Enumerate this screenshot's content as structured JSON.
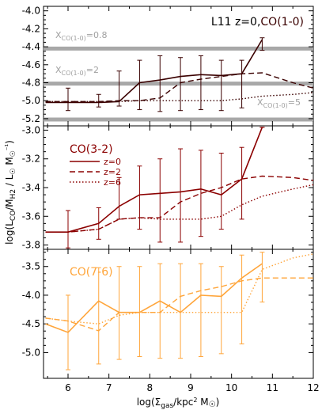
{
  "figure": {
    "x_label": "log(Σgas/kpc² M☉)",
    "y_label": "log(LCO/MH2 / L☉ M☉⁻¹)",
    "colors": {
      "axis": "#000000",
      "co10": "#3a0000",
      "co32": "#8b0000",
      "co76": "#ffa53a",
      "xco_band": "#a8a8a8",
      "xco_label": "#a0a0a0"
    }
  },
  "chart_data": [
    {
      "type": "line",
      "panel": "top",
      "title": "L11 z=0,CO(1-0)",
      "title_parts": [
        "L11 z=0,",
        "CO(1-0)"
      ],
      "xlim": [
        5.4,
        12
      ],
      "ylim": [
        -5.28,
        -3.95
      ],
      "x_ticks": [
        6,
        7,
        8,
        9,
        10,
        11,
        12
      ],
      "y_ticks": [
        -5.2,
        -5.0,
        -4.8,
        -4.6,
        -4.4,
        -4.2,
        -4.0
      ],
      "y_tick_labels": [
        "-5.2",
        "-5.0",
        "-4.8",
        "-4.6",
        "-4.4",
        "-4.2",
        "-4.0"
      ],
      "reference_lines": [
        {
          "label": "XCO(1-0)=0.8",
          "y": -4.42
        },
        {
          "label": "XCO(1-0)=2",
          "y": -4.81
        },
        {
          "label": "XCO(1-0)=5",
          "y": -5.21
        }
      ],
      "series": [
        {
          "style": "solid",
          "x": [
            5.45,
            6.0,
            6.75,
            7.25,
            7.75,
            8.25,
            8.75,
            9.25,
            9.75,
            10.25,
            10.75
          ],
          "y": [
            -5.02,
            -5.02,
            -5.02,
            -5.01,
            -4.8,
            -4.77,
            -4.73,
            -4.71,
            -4.72,
            -4.7,
            -4.32
          ]
        },
        {
          "style": "dashed",
          "x": [
            5.45,
            6.0,
            6.75,
            7.25,
            7.75,
            8.25,
            8.75,
            9.25,
            9.75,
            10.25,
            10.75,
            11.5,
            12.0
          ],
          "y": [
            -5.01,
            -5.01,
            -5.01,
            -5.0,
            -5.0,
            -4.97,
            -4.8,
            -4.76,
            -4.73,
            -4.7,
            -4.69,
            -4.8,
            -4.86
          ]
        },
        {
          "style": "dotted",
          "x": [
            5.45,
            6.0,
            6.75,
            7.25,
            7.75,
            8.25,
            8.75,
            9.25,
            9.75,
            10.25,
            10.75,
            11.5,
            12.0
          ],
          "y": [
            -5.01,
            -5.01,
            -5.01,
            -5.01,
            -5.0,
            -5.0,
            -5.0,
            -5.0,
            -5.0,
            -4.98,
            -4.95,
            -4.93,
            -4.91
          ]
        }
      ],
      "errorbars": {
        "x": [
          6.0,
          6.75,
          7.25,
          7.75,
          8.25,
          8.75,
          9.25,
          9.75,
          10.25,
          10.75
        ],
        "y": [
          -5.02,
          -5.02,
          -5.01,
          -4.8,
          -4.77,
          -4.73,
          -4.71,
          -4.72,
          -4.7,
          -4.32
        ],
        "low": [
          -5.11,
          -5.07,
          -5.06,
          -5.1,
          -5.12,
          -5.11,
          -5.1,
          -5.11,
          -5.08,
          -4.44
        ],
        "high": [
          -4.86,
          -4.93,
          -4.67,
          -4.55,
          -4.5,
          -4.52,
          -4.5,
          -4.55,
          -4.55,
          -4.3
        ]
      }
    },
    {
      "type": "line",
      "panel": "middle",
      "title": "CO(3-2)",
      "xlim": [
        5.4,
        12
      ],
      "ylim": [
        -3.83,
        -2.97
      ],
      "x_ticks": [
        6,
        7,
        8,
        9,
        10,
        11,
        12
      ],
      "y_ticks": [
        -3.8,
        -3.6,
        -3.4,
        -3.2,
        -3.0
      ],
      "y_tick_labels": [
        "-3.8",
        "-3.6",
        "-3.4",
        "-3.2",
        "-3.0"
      ],
      "legend": [
        "z=0",
        "z=2",
        "z=6"
      ],
      "series": [
        {
          "name": "z=0",
          "style": "solid",
          "x": [
            5.45,
            6.0,
            6.75,
            7.25,
            7.75,
            8.25,
            8.75,
            9.25,
            9.75,
            10.25,
            10.75
          ],
          "y": [
            -3.71,
            -3.71,
            -3.65,
            -3.53,
            -3.45,
            -3.44,
            -3.43,
            -3.41,
            -3.45,
            -3.34,
            -2.98
          ]
        },
        {
          "name": "z=2",
          "style": "dashed",
          "x": [
            5.45,
            6.0,
            6.75,
            7.25,
            7.75,
            8.25,
            8.75,
            9.25,
            9.75,
            10.25,
            10.75,
            11.5,
            12.0
          ],
          "y": [
            -3.71,
            -3.71,
            -3.69,
            -3.62,
            -3.61,
            -3.61,
            -3.5,
            -3.44,
            -3.4,
            -3.34,
            -3.32,
            -3.33,
            -3.35
          ]
        },
        {
          "name": "z=6",
          "style": "dotted",
          "x": [
            5.45,
            6.0,
            6.75,
            7.25,
            7.75,
            8.25,
            8.75,
            9.25,
            9.75,
            10.25,
            10.75,
            11.5,
            12.0
          ],
          "y": [
            -3.71,
            -3.71,
            -3.69,
            -3.62,
            -3.61,
            -3.62,
            -3.62,
            -3.62,
            -3.6,
            -3.52,
            -3.46,
            -3.41,
            -3.38
          ]
        }
      ],
      "errorbars": {
        "x": [
          6.0,
          6.75,
          7.25,
          7.75,
          8.25,
          8.75,
          9.25,
          9.75,
          10.25,
          10.75
        ],
        "y": [
          -3.71,
          -3.65,
          -3.53,
          -3.45,
          -3.44,
          -3.43,
          -3.41,
          -3.45,
          -3.34,
          -2.98
        ],
        "low": [
          -3.82,
          -3.76,
          -3.62,
          -3.69,
          -3.78,
          -3.78,
          -3.74,
          -3.69,
          -3.62,
          -2.98
        ],
        "high": [
          -3.56,
          -3.54,
          -3.33,
          -3.25,
          -3.2,
          -3.13,
          -3.14,
          -3.16,
          -3.12,
          -2.98
        ]
      }
    },
    {
      "type": "line",
      "panel": "bottom",
      "title": "CO(7-6)",
      "xlim": [
        5.4,
        12
      ],
      "ylim": [
        -5.45,
        -3.2
      ],
      "x_ticks": [
        6,
        7,
        8,
        9,
        10,
        11,
        12
      ],
      "x_tick_labels": [
        "6",
        "7",
        "8",
        "9",
        "10",
        "11",
        "12"
      ],
      "y_ticks": [
        -5.0,
        -4.5,
        -4.0,
        -3.5
      ],
      "y_tick_labels": [
        "-5.0",
        "-4.5",
        "-4.0",
        "-3.5"
      ],
      "series": [
        {
          "style": "solid",
          "x": [
            5.45,
            6.0,
            6.75,
            7.25,
            7.75,
            8.25,
            8.75,
            9.25,
            9.75,
            10.25,
            10.75
          ],
          "y": [
            -4.5,
            -4.65,
            -4.1,
            -4.3,
            -4.3,
            -4.1,
            -4.3,
            -4.0,
            -4.02,
            -3.7,
            -3.45
          ]
        },
        {
          "style": "dashed",
          "x": [
            5.45,
            6.0,
            6.75,
            7.25,
            7.75,
            8.25,
            8.75,
            9.25,
            9.75,
            10.25,
            10.75,
            11.5,
            12.0
          ],
          "y": [
            -4.4,
            -4.45,
            -4.62,
            -4.3,
            -4.3,
            -4.3,
            -4.02,
            -3.92,
            -3.85,
            -3.75,
            -3.7,
            -3.7,
            -3.7
          ]
        },
        {
          "style": "dotted",
          "x": [
            5.45,
            6.0,
            6.75,
            7.25,
            7.75,
            8.25,
            8.75,
            9.25,
            9.75,
            10.25,
            10.75,
            11.5,
            12.0
          ],
          "y": [
            -4.4,
            -4.45,
            -4.5,
            -4.35,
            -4.3,
            -4.3,
            -4.3,
            -4.3,
            -4.3,
            -4.3,
            -3.55,
            -3.35,
            -3.28
          ]
        }
      ],
      "errorbars": {
        "x": [
          6.0,
          6.75,
          7.25,
          7.75,
          8.25,
          8.75,
          9.25,
          9.75,
          10.25,
          10.75
        ],
        "y": [
          -4.65,
          -4.1,
          -4.3,
          -4.3,
          -4.1,
          -4.3,
          -4.0,
          -4.02,
          -3.7,
          -3.45
        ],
        "low": [
          -5.3,
          -5.2,
          -5.12,
          -5.07,
          -5.1,
          -5.1,
          -5.07,
          -5.02,
          -4.85,
          -4.12
        ],
        "high": [
          -4.0,
          -3.52,
          -3.5,
          -3.5,
          -3.45,
          -3.45,
          -3.45,
          -3.5,
          -3.3,
          -3.25
        ]
      }
    }
  ]
}
